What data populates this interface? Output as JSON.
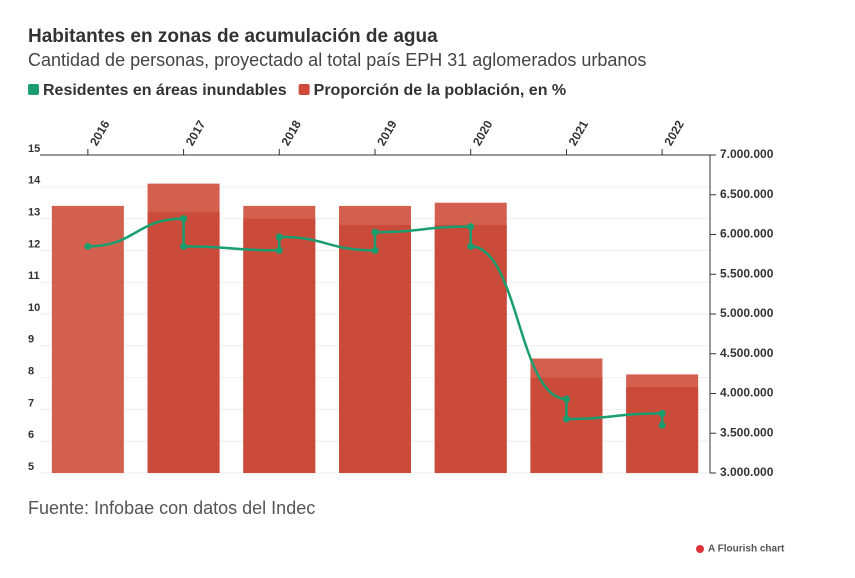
{
  "chart_data": {
    "type": "bar_line",
    "title": "Habitantes en zonas de acumulación de agua",
    "subtitle": "Cantidad de personas, proyectado al total país EPH 31 aglomerados urbanos",
    "categories": [
      "2016",
      "2017",
      "2018",
      "2019",
      "2020",
      "2021",
      "2022"
    ],
    "series": [
      {
        "name": "Residentes en áreas inundables",
        "color": "#1a9e70",
        "axis": "y2",
        "values": [
          [
            5850000,
            null
          ],
          [
            6200000,
            5850000
          ],
          [
            5800000,
            5970000
          ],
          [
            5800000,
            6030000
          ],
          [
            6100000,
            5850000
          ],
          [
            3930000,
            3680000
          ],
          [
            3750000,
            3600000
          ]
        ]
      },
      {
        "name": "Proporción de la población, en %",
        "color": "#d04a3a",
        "colors": [
          "#d3604f",
          "#cb4b3b"
        ],
        "values": [
          [
            13.4,
            null
          ],
          [
            14.1,
            13.2
          ],
          [
            13.4,
            13.0
          ],
          [
            13.4,
            12.8
          ],
          [
            13.5,
            12.8
          ],
          [
            8.6,
            8.0
          ],
          [
            8.1,
            7.7
          ]
        ]
      }
    ],
    "ylim": [
      5,
      15
    ],
    "yticks": [
      5,
      6,
      7,
      8,
      9,
      10,
      11,
      12,
      13,
      14,
      15
    ],
    "y2lim": [
      3000000,
      7000000
    ],
    "y2ticks": [
      {
        "value": 3000000,
        "label": "3.000.000"
      },
      {
        "value": 3500000,
        "label": "3.500.000"
      },
      {
        "value": 4000000,
        "label": "4.000.000"
      },
      {
        "value": 4500000,
        "label": "4.500.000"
      },
      {
        "value": 5000000,
        "label": "5.000.000"
      },
      {
        "value": 5500000,
        "label": "5.500.000"
      },
      {
        "value": 6000000,
        "label": "6.000.000"
      },
      {
        "value": 6500000,
        "label": "6.500.000"
      },
      {
        "value": 7000000,
        "label": "7.000.000"
      }
    ],
    "grid": true,
    "source": "Fuente: Infobae con datos del Indec",
    "credit": "A Flourish chart"
  }
}
